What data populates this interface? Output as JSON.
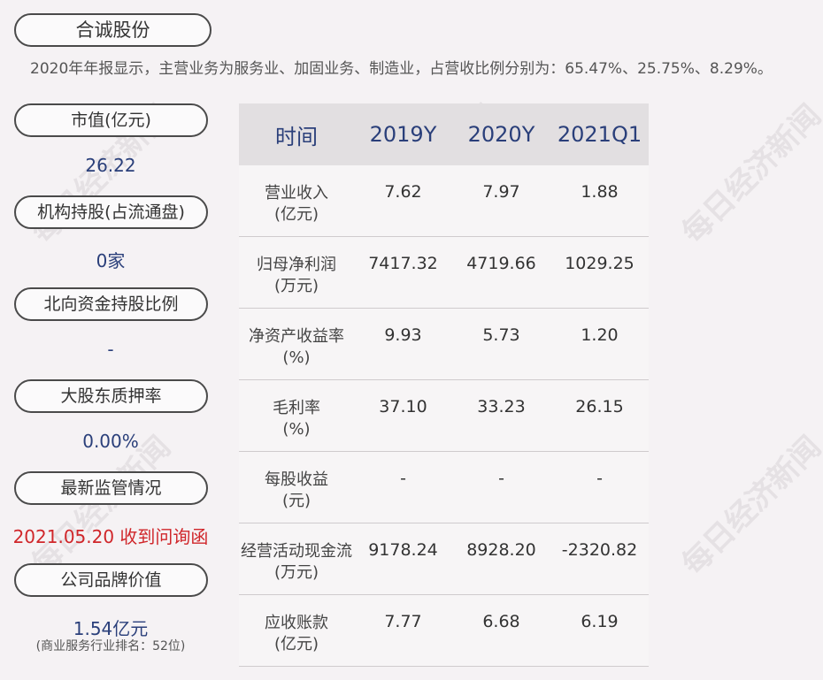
{
  "title": "合诚股份",
  "summary": "2020年年报显示，主营业务为服务业、加固业务、制造业，占营收比例分别为：65.47%、25.75%、8.29%。",
  "left_panel": [
    {
      "label": "市值(亿元)",
      "value": "26.22"
    },
    {
      "label": "机构持股(占流通盘)",
      "value": "0家"
    },
    {
      "label": "北向资金持股比例",
      "value": "-"
    },
    {
      "label": "大股东质押率",
      "value": "0.00%"
    },
    {
      "label": "最新监管情况",
      "value": "2021.05.20 收到问询函"
    },
    {
      "label": "公司品牌价值",
      "value": "1.54亿元",
      "note": "(商业服务行业排名：52位)"
    }
  ],
  "table": {
    "headers": [
      "时间",
      "2019Y",
      "2020Y",
      "2021Q1"
    ],
    "rows": [
      {
        "label": "营业收入",
        "unit": "(亿元)",
        "values": [
          "7.62",
          "7.97",
          "1.88"
        ]
      },
      {
        "label": "归母净利润",
        "unit": "(万元)",
        "values": [
          "7417.32",
          "4719.66",
          "1029.25"
        ]
      },
      {
        "label": "净资产收益率",
        "unit": "(%)",
        "values": [
          "9.93",
          "5.73",
          "1.20"
        ]
      },
      {
        "label": "毛利率",
        "unit": "(%)",
        "values": [
          "37.10",
          "33.23",
          "26.15"
        ]
      },
      {
        "label": "每股收益",
        "unit": "(元)",
        "values": [
          "-",
          "-",
          "-"
        ]
      },
      {
        "label": "经营活动现金流",
        "unit": "(万元)",
        "values": [
          "9178.24",
          "8928.20",
          "-2320.82"
        ]
      },
      {
        "label": "应收账款",
        "unit": "(亿元)",
        "values": [
          "7.77",
          "6.68",
          "6.19"
        ]
      }
    ]
  },
  "watermark": "每日经济新闻"
}
